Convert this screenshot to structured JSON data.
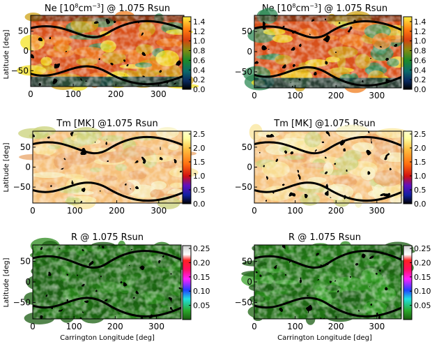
{
  "chart_data": [
    {
      "type": "heatmap",
      "title_prefix": "Ne [10",
      "title_sup": "8",
      "title_unit": "cm",
      "title_sup2": "−3",
      "title_suffix": "] @ 1.075 Rsun",
      "xlabel": "",
      "ylabel": "Latitude [deg]",
      "x_ticks": [
        "0",
        "100",
        "200",
        "300"
      ],
      "y_ticks": [
        "50",
        "0",
        "−50"
      ],
      "xlim": [
        0,
        360
      ],
      "ylim": [
        -90,
        90
      ],
      "colorbar_ticks": [
        "1.4",
        "1.2",
        "1.0",
        "0.8",
        "0.6",
        "0.4",
        "0.2",
        "0.0"
      ],
      "colorbar_range": [
        0.0,
        1.5
      ],
      "colormap": "rainbow-dark"
    },
    {
      "type": "heatmap",
      "title_prefix": "Ne [10",
      "title_sup": "8",
      "title_unit": "cm",
      "title_sup2": "−3",
      "title_suffix": "] @ 1.075 Rsun",
      "xlabel": "",
      "ylabel": "",
      "x_ticks": [
        "0",
        "100",
        "200",
        "300"
      ],
      "y_ticks": [
        "50",
        "0",
        "−50"
      ],
      "xlim": [
        0,
        360
      ],
      "ylim": [
        -90,
        90
      ],
      "colorbar_ticks": [
        "1.4",
        "1.2",
        "1.0",
        "0.8",
        "0.6",
        "0.4",
        "0.2",
        "0.0"
      ],
      "colorbar_range": [
        0.0,
        1.5
      ],
      "colormap": "rainbow-dark"
    },
    {
      "type": "heatmap",
      "title": "Tm [MK] @1.075 Rsun",
      "xlabel": "",
      "ylabel": "Latitude [deg]",
      "x_ticks": [
        "0",
        "100",
        "200",
        "300"
      ],
      "y_ticks": [
        "50",
        "0",
        "−50"
      ],
      "xlim": [
        0,
        360
      ],
      "ylim": [
        -90,
        90
      ],
      "colorbar_ticks": [
        "2.5",
        "2.0",
        "1.5",
        "1.0",
        "0.5",
        "0.0"
      ],
      "colorbar_range": [
        0.0,
        2.6
      ],
      "colormap": "rainbow-light"
    },
    {
      "type": "heatmap",
      "title": "Tm [MK] @1.075 Rsun",
      "xlabel": "",
      "ylabel": "",
      "x_ticks": [
        "0",
        "100",
        "200",
        "300"
      ],
      "y_ticks": [
        "50",
        "0",
        "−50"
      ],
      "xlim": [
        0,
        360
      ],
      "ylim": [
        -90,
        90
      ],
      "colorbar_ticks": [
        "2.5",
        "2.0",
        "1.5",
        "1.0",
        "0.5",
        "0.0"
      ],
      "colorbar_range": [
        0.0,
        2.6
      ],
      "colormap": "rainbow-light"
    },
    {
      "type": "heatmap",
      "title": "R @ 1.075 Rsun",
      "xlabel": "Carrington Longitude [deg]",
      "ylabel": "Latitude [deg]",
      "x_ticks": [
        "0",
        "100",
        "200",
        "300"
      ],
      "y_ticks": [
        "50",
        "0",
        "−50"
      ],
      "xlim": [
        0,
        360
      ],
      "ylim": [
        -90,
        90
      ],
      "colorbar_ticks": [
        "0.25",
        "0.20",
        "0.15",
        "0.10",
        "0.05"
      ],
      "colorbar_range": [
        0.0,
        0.26
      ],
      "colormap": "discrete-r"
    },
    {
      "type": "heatmap",
      "title": "R @ 1.075 Rsun",
      "xlabel": "Carrington Longitude [deg]",
      "ylabel": "",
      "x_ticks": [
        "0",
        "100",
        "200",
        "300"
      ],
      "y_ticks": [
        "50",
        "0",
        "−50"
      ],
      "xlim": [
        0,
        360
      ],
      "ylim": [
        -90,
        90
      ],
      "colorbar_ticks": [
        "0.25",
        "0.20",
        "0.15",
        "0.10",
        "0.05"
      ],
      "colorbar_range": [
        0.0,
        0.26
      ],
      "colormap": "discrete-r"
    }
  ]
}
